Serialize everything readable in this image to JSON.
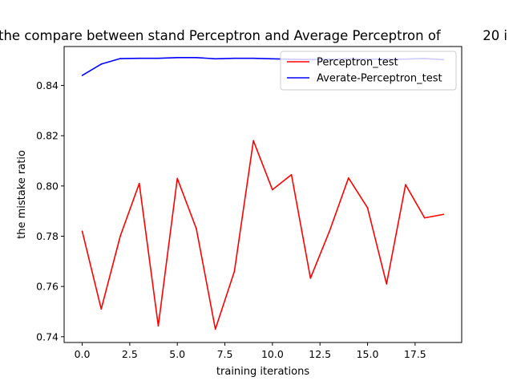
{
  "chart_data": {
    "type": "line",
    "title": "the compare between stand Perceptron and Average Perceptron of          20 i",
    "xlabel": "training iterations",
    "ylabel": "the mistake ratio",
    "xlim": [
      -0.95,
      19.95
    ],
    "ylim": [
      0.7377,
      0.8555
    ],
    "xticks": [
      0.0,
      2.5,
      5.0,
      7.5,
      10.0,
      12.5,
      15.0,
      17.5
    ],
    "xtick_labels": [
      "0.0",
      "2.5",
      "5.0",
      "7.5",
      "10.0",
      "12.5",
      "15.0",
      "17.5"
    ],
    "yticks": [
      0.74,
      0.76,
      0.78,
      0.8,
      0.82,
      0.84
    ],
    "ytick_labels": [
      "0.74",
      "0.76",
      "0.78",
      "0.80",
      "0.82",
      "0.84"
    ],
    "grid": false,
    "legend_position": "top-right",
    "x": [
      0,
      1,
      2,
      3,
      4,
      5,
      6,
      7,
      8,
      9,
      10,
      11,
      12,
      13,
      14,
      15,
      16,
      17,
      18,
      19
    ],
    "series": [
      {
        "name": "Perceptron_test",
        "color": "#ff0000",
        "values": [
          0.782,
          0.751,
          0.78,
          0.801,
          0.7443,
          0.803,
          0.783,
          0.743,
          0.766,
          0.818,
          0.7985,
          0.8045,
          0.7633,
          0.782,
          0.8032,
          0.7913,
          0.761,
          0.8005,
          0.7873,
          0.7887
        ]
      },
      {
        "name": "Averate-Perceptron_test",
        "color": "#0000ff",
        "values": [
          0.844,
          0.8485,
          0.8507,
          0.8508,
          0.8508,
          0.8511,
          0.8511,
          0.8506,
          0.8508,
          0.8508,
          0.8506,
          0.8504,
          0.8503,
          0.8504,
          0.8506,
          0.8505,
          0.8504,
          0.8505,
          0.8507,
          0.8503
        ]
      }
    ]
  }
}
